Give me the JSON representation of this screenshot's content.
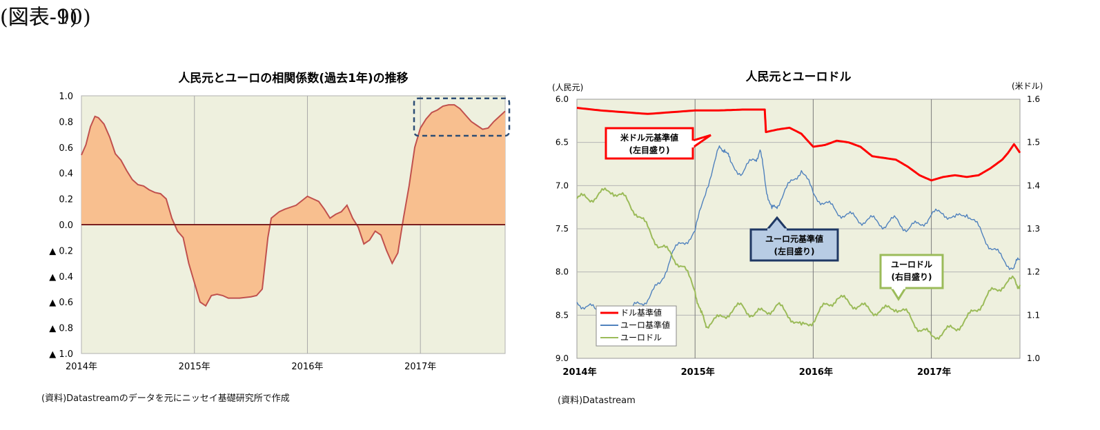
{
  "figure9": {
    "label": "(図表-9)",
    "source": "(資料)Datastreamのデータを元にニッセイ基礎研究所で作成"
  },
  "figure10": {
    "label": "(図表-10)",
    "source": "(資料)Datastream"
  },
  "colors": {
    "plot_bg": "#eef0de",
    "area_fill": "#f8bf8f",
    "area_line": "#c0504d",
    "zero_line": "#7a1f1f",
    "cny_usd": "#ff0000",
    "cny_eur": "#4f81bd",
    "eur_usd": "#9bbb59",
    "highlight_box": "#2c4d75"
  },
  "chart_data": [
    {
      "type": "area",
      "title": "人民元とユーロの相関係数(過去1年)の推移",
      "x_tick_labels": [
        "2014年",
        "2015年",
        "2016年",
        "2017年"
      ],
      "y_tick_labels": [
        "1.0",
        "0.8",
        "0.6",
        "0.4",
        "0.2",
        "0.0",
        "▲ 0.2",
        "▲ 0.4",
        "▲ 0.6",
        "▲ 0.8",
        "▲ 1.0"
      ],
      "ylim": [
        -1.0,
        1.0
      ],
      "xlim": [
        2014.0,
        2017.75
      ],
      "grid": "vertical at year boundaries",
      "annotation": "dashed box highlighting 2017 peak",
      "x": [
        2014.0,
        2014.04,
        2014.08,
        2014.12,
        2014.15,
        2014.2,
        2014.25,
        2014.3,
        2014.35,
        2014.4,
        2014.45,
        2014.5,
        2014.55,
        2014.6,
        2014.65,
        2014.7,
        2014.75,
        2014.8,
        2014.85,
        2014.9,
        2014.95,
        2015.0,
        2015.05,
        2015.1,
        2015.15,
        2015.2,
        2015.25,
        2015.3,
        2015.4,
        2015.5,
        2015.55,
        2015.6,
        2015.65,
        2015.68,
        2015.75,
        2015.8,
        2015.9,
        2016.0,
        2016.05,
        2016.1,
        2016.15,
        2016.2,
        2016.25,
        2016.3,
        2016.35,
        2016.4,
        2016.45,
        2016.5,
        2016.55,
        2016.6,
        2016.65,
        2016.7,
        2016.75,
        2016.8,
        2016.85,
        2016.9,
        2016.95,
        2017.0,
        2017.05,
        2017.1,
        2017.15,
        2017.2,
        2017.25,
        2017.3,
        2017.35,
        2017.4,
        2017.45,
        2017.5,
        2017.55,
        2017.6,
        2017.65,
        2017.7,
        2017.75
      ],
      "values": [
        0.54,
        0.62,
        0.76,
        0.84,
        0.83,
        0.78,
        0.68,
        0.55,
        0.5,
        0.42,
        0.35,
        0.31,
        0.3,
        0.27,
        0.25,
        0.24,
        0.2,
        0.05,
        -0.05,
        -0.1,
        -0.3,
        -0.45,
        -0.6,
        -0.63,
        -0.55,
        -0.54,
        -0.55,
        -0.57,
        -0.57,
        -0.56,
        -0.55,
        -0.5,
        -0.1,
        0.05,
        0.1,
        0.12,
        0.15,
        0.22,
        0.2,
        0.18,
        0.12,
        0.05,
        0.08,
        0.1,
        0.15,
        0.05,
        -0.02,
        -0.15,
        -0.12,
        -0.05,
        -0.08,
        -0.2,
        -0.3,
        -0.22,
        0.05,
        0.3,
        0.6,
        0.75,
        0.82,
        0.87,
        0.89,
        0.92,
        0.93,
        0.93,
        0.9,
        0.85,
        0.8,
        0.77,
        0.74,
        0.75,
        0.8,
        0.84,
        0.88
      ]
    },
    {
      "type": "line",
      "title": "人民元とユーロドル",
      "left_axis_unit": "(人民元)",
      "right_axis_unit": "(米ドル)",
      "x_tick_labels": [
        "2014年",
        "2015年",
        "2016年",
        "2017年"
      ],
      "left_tick_labels": [
        "6.0",
        "6.5",
        "7.0",
        "7.5",
        "8.0",
        "8.5",
        "9.0"
      ],
      "right_tick_labels": [
        "1.6",
        "1.5",
        "1.4",
        "1.3",
        "1.2",
        "1.1",
        "1.0"
      ],
      "left_ylim": [
        6.0,
        9.0
      ],
      "left_axis_inverted": true,
      "right_ylim": [
        1.0,
        1.6
      ],
      "xlim": [
        2014.0,
        2017.75
      ],
      "grid": "vertical at years, horizontal at ticks",
      "legend_position": "bottom-left",
      "callouts": [
        {
          "series": "cny_usd",
          "line1": "米ドル元基準値",
          "line2": "(左目盛り)"
        },
        {
          "series": "cny_eur",
          "line1": "ユーロ元基準値",
          "line2": "(左目盛り)"
        },
        {
          "series": "eur_usd",
          "line1": "ユーロドル",
          "line2": "(右目盛り)"
        }
      ],
      "series": [
        {
          "key": "cny_usd",
          "name": "ドル基準値",
          "axis": "left",
          "x": [
            2014.0,
            2014.2,
            2014.4,
            2014.6,
            2014.8,
            2015.0,
            2015.2,
            2015.4,
            2015.59,
            2015.6,
            2015.7,
            2015.8,
            2015.9,
            2016.0,
            2016.1,
            2016.2,
            2016.3,
            2016.4,
            2016.5,
            2016.6,
            2016.7,
            2016.8,
            2016.9,
            2017.0,
            2017.1,
            2017.2,
            2017.3,
            2017.4,
            2017.5,
            2017.6,
            2017.65,
            2017.7,
            2017.75
          ],
          "values": [
            6.1,
            6.13,
            6.15,
            6.17,
            6.15,
            6.13,
            6.13,
            6.12,
            6.12,
            6.38,
            6.35,
            6.33,
            6.4,
            6.55,
            6.53,
            6.48,
            6.5,
            6.55,
            6.66,
            6.68,
            6.7,
            6.78,
            6.88,
            6.94,
            6.9,
            6.88,
            6.9,
            6.88,
            6.8,
            6.7,
            6.62,
            6.52,
            6.62
          ]
        },
        {
          "key": "cny_eur",
          "name": "ユーロ基準値",
          "axis": "left",
          "x": [
            2014.0,
            2014.1,
            2014.2,
            2014.3,
            2014.4,
            2014.5,
            2014.6,
            2014.7,
            2014.8,
            2014.9,
            2015.0,
            2015.1,
            2015.2,
            2015.25,
            2015.3,
            2015.4,
            2015.5,
            2015.55,
            2015.6,
            2015.65,
            2015.7,
            2015.8,
            2015.9,
            2016.0,
            2016.1,
            2016.2,
            2016.3,
            2016.4,
            2016.5,
            2016.6,
            2016.7,
            2016.8,
            2016.9,
            2017.0,
            2017.1,
            2017.2,
            2017.3,
            2017.4,
            2017.5,
            2017.6,
            2017.7,
            2017.75
          ],
          "values": [
            8.35,
            8.4,
            8.5,
            8.55,
            8.5,
            8.4,
            8.3,
            8.15,
            7.8,
            7.65,
            7.55,
            7.0,
            6.6,
            6.55,
            6.75,
            6.85,
            6.7,
            6.6,
            7.0,
            7.3,
            7.2,
            7.0,
            6.8,
            7.1,
            7.2,
            7.3,
            7.35,
            7.4,
            7.4,
            7.45,
            7.4,
            7.5,
            7.45,
            7.35,
            7.3,
            7.4,
            7.3,
            7.5,
            7.7,
            7.85,
            7.95,
            7.85
          ]
        },
        {
          "key": "eur_usd",
          "name": "ユーロドル",
          "axis": "right",
          "x": [
            2014.0,
            2014.1,
            2014.2,
            2014.3,
            2014.4,
            2014.5,
            2014.6,
            2014.7,
            2014.8,
            2014.9,
            2015.0,
            2015.05,
            2015.1,
            2015.2,
            2015.3,
            2015.4,
            2015.5,
            2015.6,
            2015.7,
            2015.8,
            2015.9,
            2016.0,
            2016.1,
            2016.2,
            2016.3,
            2016.4,
            2016.5,
            2016.6,
            2016.7,
            2016.8,
            2016.9,
            2017.0,
            2017.1,
            2017.2,
            2017.3,
            2017.4,
            2017.5,
            2017.6,
            2017.7,
            2017.75
          ],
          "values": [
            1.37,
            1.37,
            1.38,
            1.39,
            1.37,
            1.34,
            1.3,
            1.26,
            1.24,
            1.21,
            1.16,
            1.1,
            1.08,
            1.09,
            1.11,
            1.12,
            1.1,
            1.11,
            1.12,
            1.1,
            1.07,
            1.09,
            1.12,
            1.14,
            1.13,
            1.12,
            1.11,
            1.11,
            1.12,
            1.1,
            1.07,
            1.05,
            1.06,
            1.07,
            1.09,
            1.12,
            1.15,
            1.17,
            1.18,
            1.17
          ]
        }
      ]
    }
  ]
}
